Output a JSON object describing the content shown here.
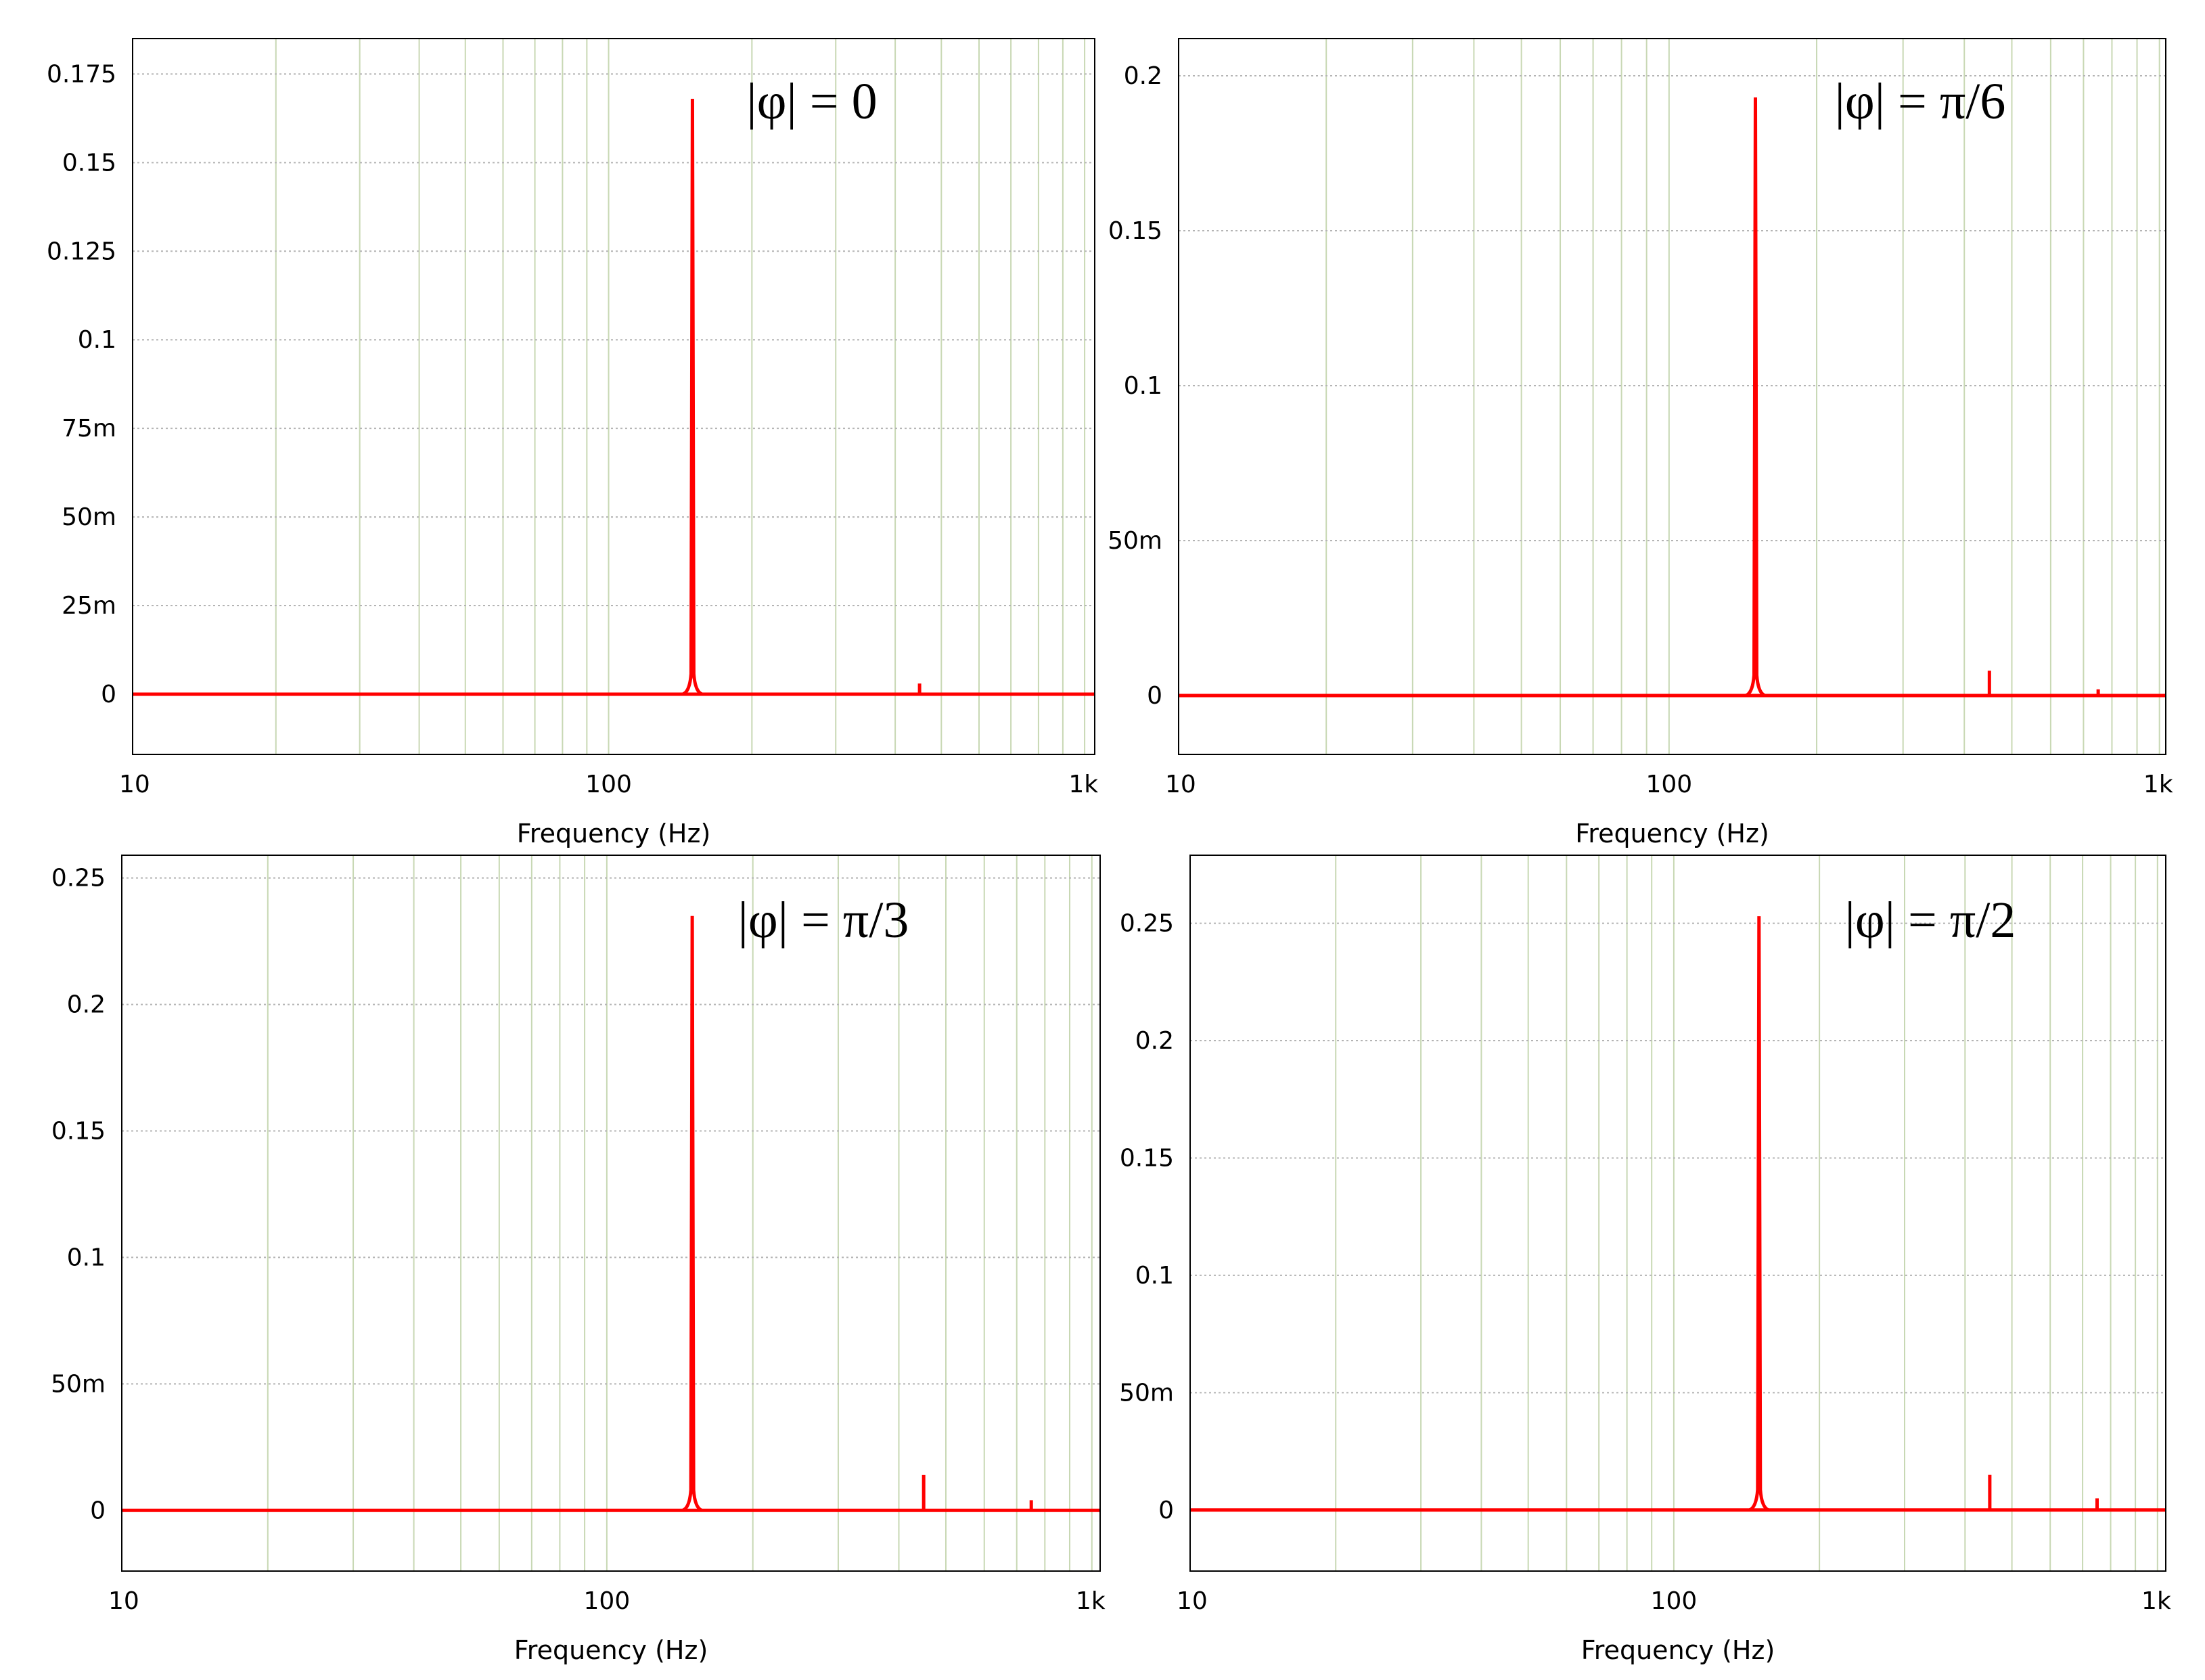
{
  "colors": {
    "trace": "#ff0000",
    "grid_h": "#b4b4b4",
    "grid_v": "#c8d8b4",
    "frame": "#000000"
  },
  "chart_data": [
    {
      "type": "line",
      "annotation": "|φ| = 0",
      "xlabel": "Frequency (Hz)",
      "ylabel": "",
      "xscale": "log",
      "xlim": [
        10,
        1050
      ],
      "ylim": [
        -0.017,
        0.185
      ],
      "xticks": [
        {
          "value": 10,
          "label": "10"
        },
        {
          "value": 100,
          "label": "100"
        },
        {
          "value": 1000,
          "label": "1k"
        }
      ],
      "yticks": [
        {
          "value": 0,
          "label": "0"
        },
        {
          "value": 0.025,
          "label": "25m"
        },
        {
          "value": 0.05,
          "label": "50m"
        },
        {
          "value": 0.075,
          "label": "75m"
        },
        {
          "value": 0.1,
          "label": "0.1"
        },
        {
          "value": 0.125,
          "label": "0.125"
        },
        {
          "value": 0.15,
          "label": "0.15"
        },
        {
          "value": 0.175,
          "label": "0.175"
        }
      ],
      "grid": true,
      "peaks": [
        {
          "x": 150,
          "y": 0.168
        },
        {
          "x": 450,
          "y": 0.003
        }
      ]
    },
    {
      "type": "line",
      "annotation": "|φ| = π/6",
      "xlabel": "Frequency (Hz)",
      "ylabel": "",
      "xscale": "log",
      "xlim": [
        10,
        1030
      ],
      "ylim": [
        -0.019,
        0.212
      ],
      "xticks": [
        {
          "value": 10,
          "label": "10"
        },
        {
          "value": 100,
          "label": "100"
        },
        {
          "value": 1000,
          "label": "1k"
        }
      ],
      "yticks": [
        {
          "value": 0,
          "label": "0"
        },
        {
          "value": 0.05,
          "label": "50m"
        },
        {
          "value": 0.1,
          "label": "0.1"
        },
        {
          "value": 0.15,
          "label": "0.15"
        },
        {
          "value": 0.2,
          "label": "0.2"
        }
      ],
      "grid": true,
      "peaks": [
        {
          "x": 150,
          "y": 0.193
        },
        {
          "x": 450,
          "y": 0.008
        },
        {
          "x": 750,
          "y": 0.002
        }
      ]
    },
    {
      "type": "line",
      "annotation": "|φ| = π/3",
      "xlabel": "Frequency (Hz)",
      "ylabel": "",
      "xscale": "log",
      "xlim": [
        10,
        1040
      ],
      "ylim": [
        -0.024,
        0.259
      ],
      "xticks": [
        {
          "value": 10,
          "label": "10"
        },
        {
          "value": 100,
          "label": "100"
        },
        {
          "value": 1000,
          "label": "1k"
        }
      ],
      "yticks": [
        {
          "value": 0,
          "label": "0"
        },
        {
          "value": 0.05,
          "label": "50m"
        },
        {
          "value": 0.1,
          "label": "0.1"
        },
        {
          "value": 0.15,
          "label": "0.15"
        },
        {
          "value": 0.2,
          "label": "0.2"
        },
        {
          "value": 0.25,
          "label": "0.25"
        }
      ],
      "grid": true,
      "peaks": [
        {
          "x": 150,
          "y": 0.235
        },
        {
          "x": 450,
          "y": 0.014
        },
        {
          "x": 750,
          "y": 0.004
        }
      ]
    },
    {
      "type": "line",
      "annotation": "|φ| = π/2",
      "xlabel": "Frequency (Hz)",
      "ylabel": "",
      "xscale": "log",
      "xlim": [
        10,
        1040
      ],
      "ylim": [
        -0.026,
        0.279
      ],
      "xticks": [
        {
          "value": 10,
          "label": "10"
        },
        {
          "value": 100,
          "label": "100"
        },
        {
          "value": 1000,
          "label": "1k"
        }
      ],
      "yticks": [
        {
          "value": 0,
          "label": "0"
        },
        {
          "value": 0.05,
          "label": "50m"
        },
        {
          "value": 0.1,
          "label": "0.1"
        },
        {
          "value": 0.15,
          "label": "0.15"
        },
        {
          "value": 0.2,
          "label": "0.2"
        },
        {
          "value": 0.25,
          "label": "0.25"
        }
      ],
      "grid": true,
      "peaks": [
        {
          "x": 150,
          "y": 0.253
        },
        {
          "x": 450,
          "y": 0.015
        },
        {
          "x": 750,
          "y": 0.005
        }
      ]
    }
  ]
}
